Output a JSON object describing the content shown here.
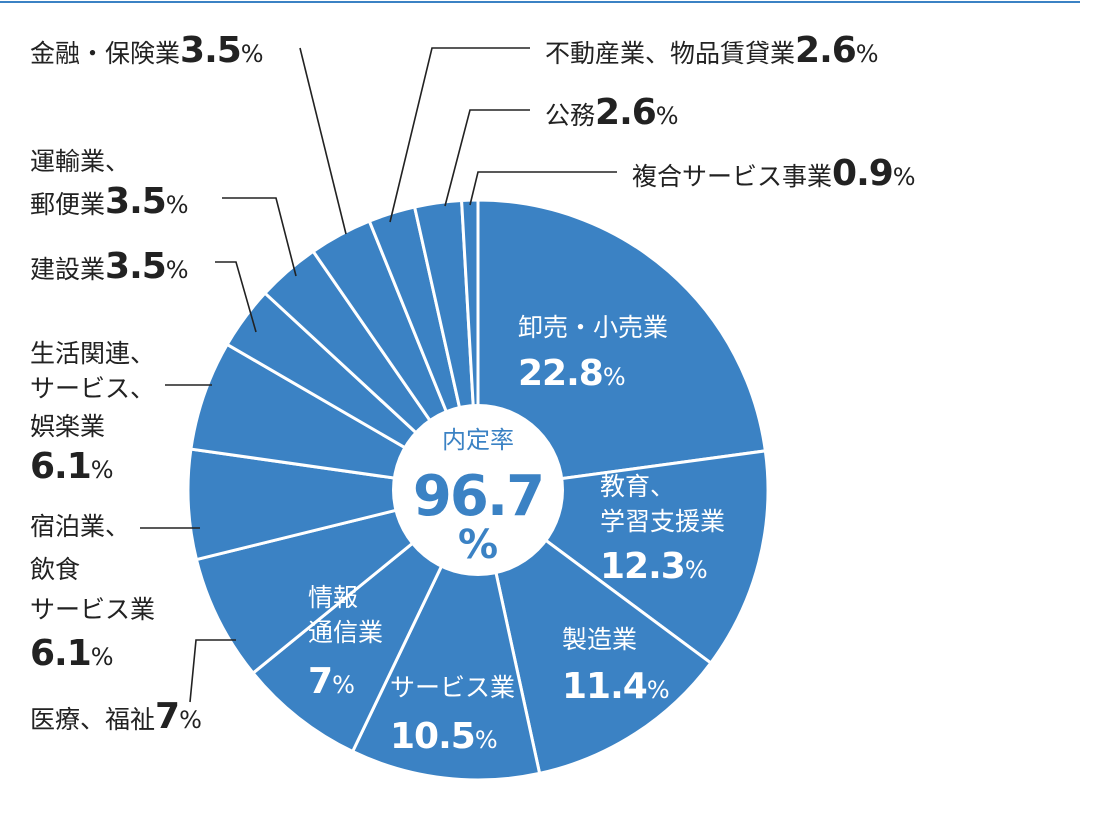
{
  "chart_data": {
    "type": "pie",
    "unit": "%",
    "center_label": "内定率",
    "center_value": 96.7,
    "color": "#3b82c4",
    "categories": [
      [
        "卸売・小売業"
      ],
      [
        "教育、",
        "学習支援業"
      ],
      [
        "製造業"
      ],
      [
        "サービス業"
      ],
      [
        "情報",
        "通信業"
      ],
      [
        "医療、福祉"
      ],
      [
        "宿泊業、",
        "飲食",
        "サービス業"
      ],
      [
        "生活関連、",
        "サービス、",
        "娯楽業"
      ],
      [
        "建設業"
      ],
      [
        "運輸業、",
        "郵便業"
      ],
      [
        "金融・保険業"
      ],
      [
        "不動産業、物品賃貸業"
      ],
      [
        "公務"
      ],
      [
        "複合サービス事業"
      ]
    ],
    "values": [
      22.8,
      12.3,
      11.4,
      10.5,
      7,
      7,
      6.1,
      6.1,
      3.5,
      3.5,
      3.5,
      2.6,
      2.6,
      0.9
    ]
  }
}
